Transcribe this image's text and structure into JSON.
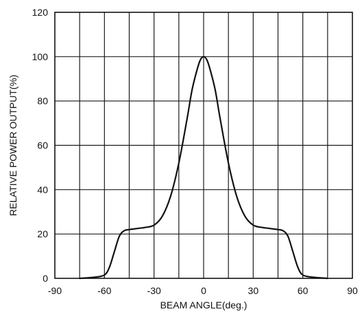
{
  "chart_data": {
    "type": "line",
    "title": "",
    "xlabel": "BEAM ANGLE(deg.)",
    "ylabel": "RELATIVE POWER OUTPUT(%)",
    "xlim": [
      -90,
      90
    ],
    "ylim": [
      0,
      120
    ],
    "x_ticks": [
      -90,
      -60,
      -30,
      0,
      30,
      60,
      90
    ],
    "y_ticks": [
      0,
      20,
      40,
      60,
      80,
      100,
      120
    ],
    "x_tick_labels": [
      "-90",
      "-60",
      "-30",
      "0",
      "30",
      "60",
      "90"
    ],
    "y_tick_labels": [
      "0",
      "20",
      "40",
      "60",
      "80",
      "100",
      "120"
    ],
    "x_grid_step": 15,
    "y_grid_step": 20,
    "grid": true,
    "series": [
      {
        "x": [
          -75,
          -66,
          -60,
          -57,
          -54,
          -51,
          -48,
          -45,
          -40,
          -35,
          -30,
          -25,
          -20,
          -15,
          -10,
          -7,
          -4,
          -2,
          0,
          2,
          4,
          7,
          10,
          15,
          20,
          25,
          30,
          35,
          40,
          45,
          48,
          51,
          54,
          57,
          60,
          66,
          75
        ],
        "y": [
          0,
          0.5,
          1.5,
          5,
          12,
          19,
          21.5,
          22,
          22.5,
          23,
          24,
          28,
          37,
          52,
          72,
          85,
          94,
          98.5,
          100,
          98.5,
          94,
          85,
          72,
          52,
          37,
          28,
          24,
          23,
          22.5,
          22,
          21.5,
          19,
          12,
          5,
          1.5,
          0.5,
          0
        ],
        "color": "#111111"
      }
    ]
  }
}
